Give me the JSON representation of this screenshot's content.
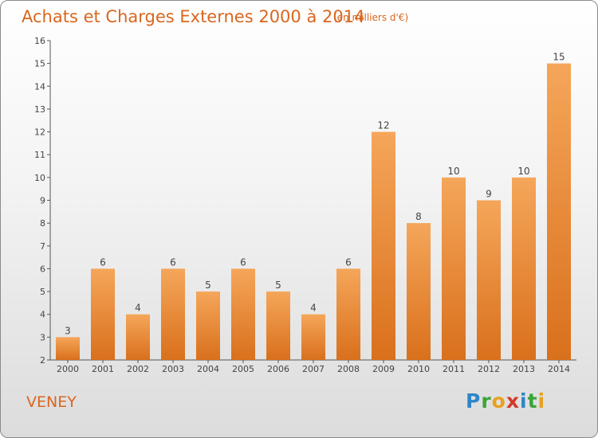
{
  "header": {
    "title": "Achats et Charges Externes 2000 à 2014",
    "unit": "(en milliers d'€)"
  },
  "footer": {
    "place": "VENEY",
    "logo_text": "Proxiti"
  },
  "colors": {
    "bar_top": "#f5a65a",
    "bar_bottom": "#d9701c",
    "accent": "#d9661f"
  },
  "chart_data": {
    "type": "bar",
    "title": "Achats et Charges Externes 2000 à 2014",
    "subtitle": "(en milliers d'€)",
    "categories": [
      "2000",
      "2001",
      "2002",
      "2003",
      "2004",
      "2005",
      "2006",
      "2007",
      "2008",
      "2009",
      "2010",
      "2011",
      "2012",
      "2013",
      "2014"
    ],
    "values": [
      3,
      6,
      4,
      6,
      5,
      6,
      5,
      4,
      6,
      12,
      8,
      10,
      9,
      10,
      15
    ],
    "ylim": [
      2,
      16
    ],
    "yticks": [
      2,
      3,
      4,
      5,
      6,
      7,
      8,
      9,
      10,
      11,
      12,
      13,
      14,
      15,
      16
    ],
    "grid": false,
    "xlabel": "",
    "ylabel": ""
  }
}
